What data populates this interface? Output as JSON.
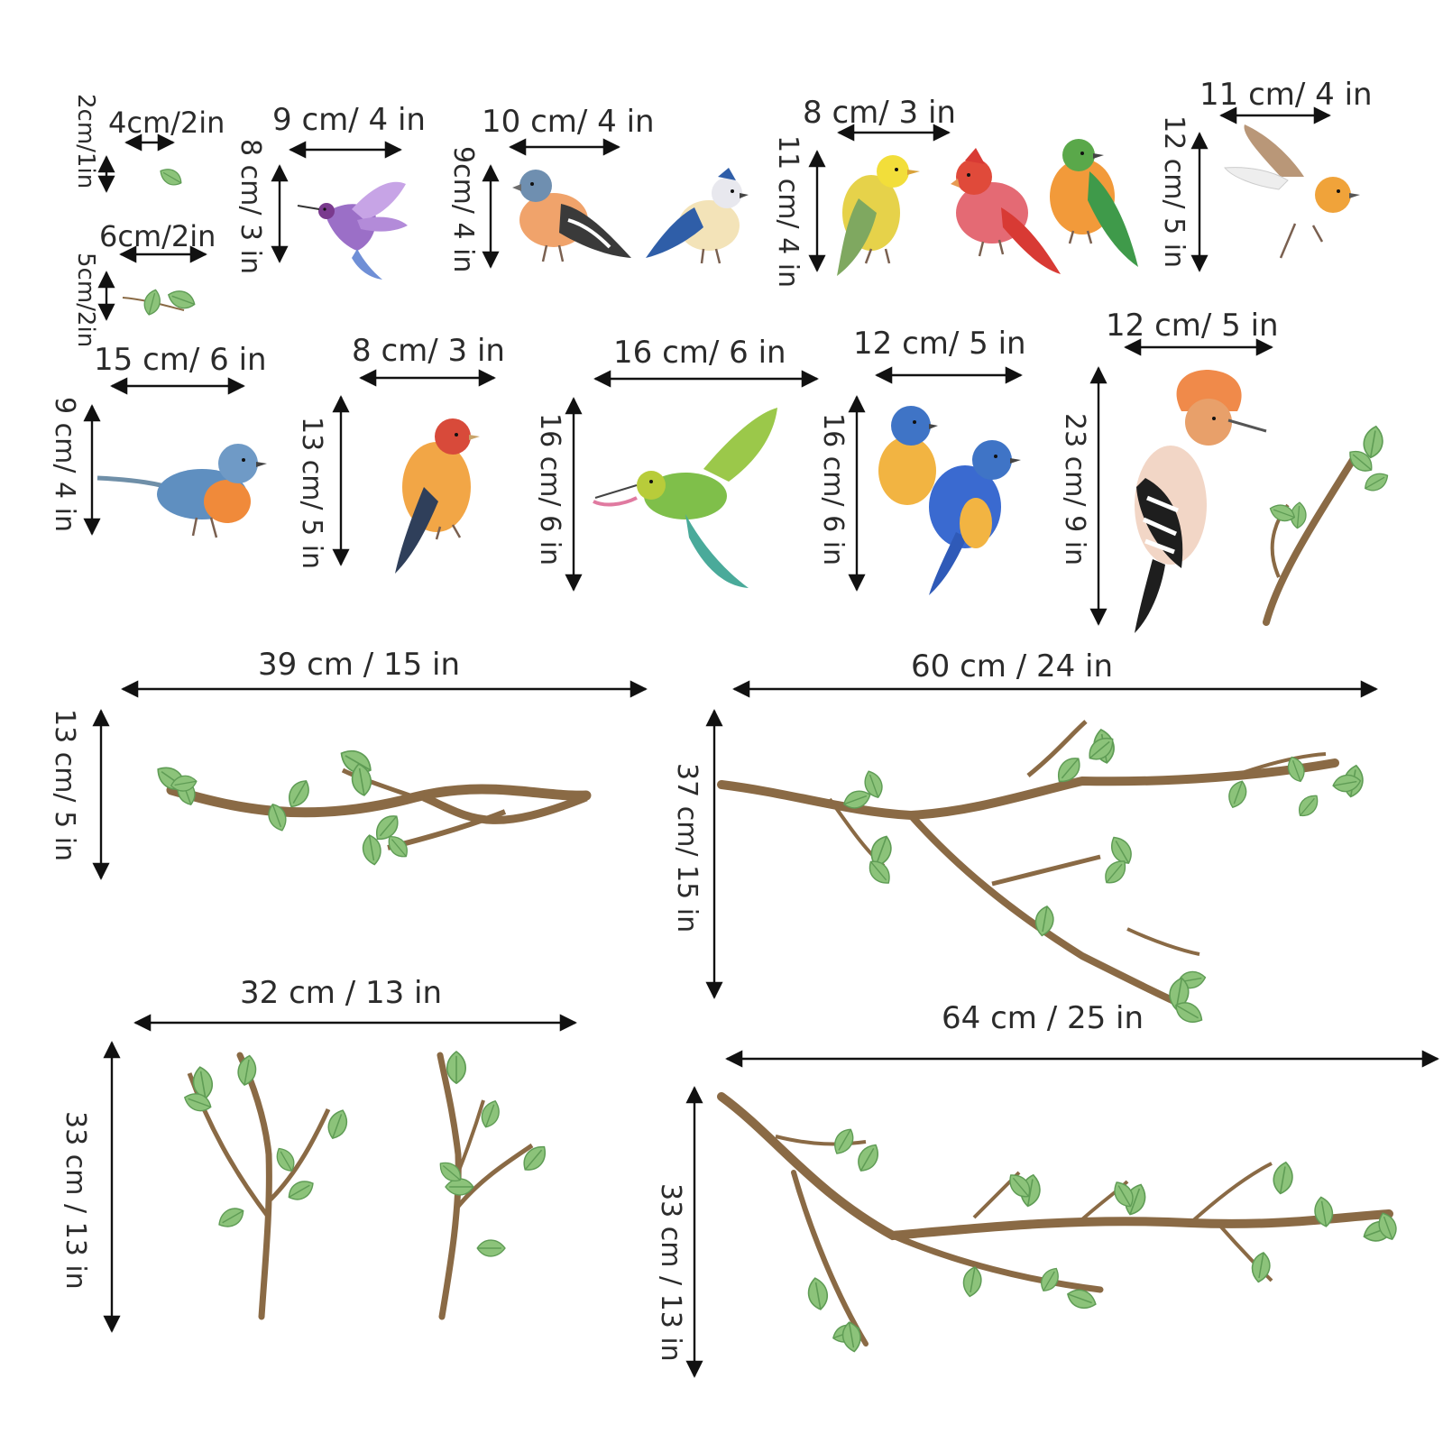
{
  "colors": {
    "branch": "#8a6a45",
    "branch_dark": "#6f5232",
    "leaf": "#8cc37a",
    "leaf_dark": "#5f9c55",
    "arrow": "#111111",
    "text": "#2b2b2b"
  },
  "labels": {
    "leaf_small_w": "4cm/2in",
    "leaf_small_h": "2cm/1in",
    "leaf_pair_w": "6cm/2in",
    "leaf_pair_h": "5cm/2in",
    "hummingbird_w": "9  cm/ 4 in",
    "hummingbird_h": "8 cm/ 3 in",
    "finch_pair_w": "10 cm/ 4 in",
    "finch_pair_h": "9cm/ 4 in",
    "trio_w": "8 cm/ 3 in",
    "trio_h": "11 cm/ 4 in",
    "robin_fly_w": "11 cm/ 4 in",
    "robin_fly_h": "12 cm/ 5 in",
    "robin_w": "15 cm/ 6 in",
    "robin_h": "9 cm/ 4 in",
    "goldfinch_w": "8 cm/ 3 in",
    "goldfinch_h": "13 cm/ 5 in",
    "beeeater_w": "16 cm/ 6 in",
    "beeeater_h": "16 cm/ 6 in",
    "bluebirds_w": "12 cm/ 5 in",
    "bluebirds_h": "16 cm/ 6 in",
    "hoopoe_w": "12 cm/ 5 in",
    "hoopoe_h": "23 cm/ 9 in",
    "branch1_w": "39 cm / 15 in",
    "branch1_h": "13 cm/ 5 in",
    "branch2_w": "60 cm / 24 in",
    "branch2_h": "37 cm/ 15 in",
    "twigs_w": "32 cm / 13 in",
    "twigs_h": "33 cm / 13 in",
    "branch3_w": "64 cm / 25 in",
    "branch3_h": "33 cm / 13 in"
  }
}
